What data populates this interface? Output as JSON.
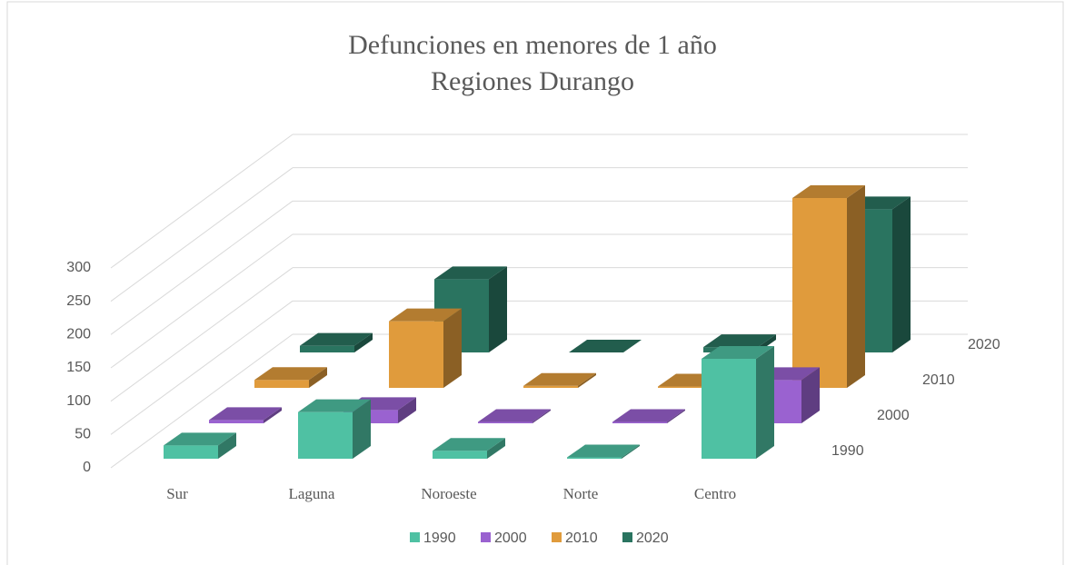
{
  "chart_data": {
    "type": "bar3d",
    "title": "Defunciones en menores de 1 año",
    "subtitle": "Regiones Durango",
    "categories": [
      "Sur",
      "Laguna",
      "Noroeste",
      "Norte",
      "Centro"
    ],
    "series": [
      {
        "name": "1990",
        "color": "#4fc1a3",
        "values": [
          20,
          70,
          12,
          2,
          150
        ]
      },
      {
        "name": "2000",
        "color": "#9a62d0",
        "values": [
          5,
          20,
          2,
          2,
          65
        ]
      },
      {
        "name": "2010",
        "color": "#e09b3c",
        "values": [
          12,
          100,
          3,
          2,
          285
        ]
      },
      {
        "name": "2020",
        "color": "#2a7460",
        "values": [
          10,
          110,
          0,
          8,
          215
        ]
      }
    ],
    "ylim": [
      0,
      300
    ],
    "yticks": [
      0,
      50,
      100,
      150,
      200,
      250,
      300
    ],
    "grid": true,
    "legend": "bottom"
  }
}
